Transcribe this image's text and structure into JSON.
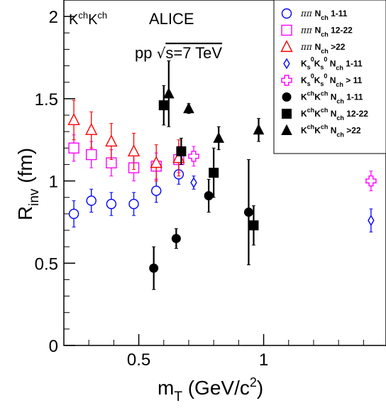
{
  "chart_data": {
    "type": "scatter",
    "title": "ALICE",
    "subtitle": "pp √s=7 TeV",
    "panel_label": "KchKch",
    "xlabel": "mT (GeV/c2)",
    "ylabel": "Rinv (fm)",
    "xlim": [
      0.2,
      1.49
    ],
    "ylim": [
      0,
      2.1
    ],
    "xticks": [
      0.5,
      1
    ],
    "xtick_labels": [
      "0.5",
      "1"
    ],
    "yticks": [
      0,
      0.5,
      1,
      1.5,
      2
    ],
    "ytick_labels": [
      "0",
      "0.5",
      "1",
      "1.5",
      "2"
    ],
    "grid": false,
    "legend_placement": "top-right",
    "series": [
      {
        "name": "ππ Nch 1-11",
        "marker": "circle-open",
        "color": "#0000ff",
        "points": [
          {
            "x": 0.24,
            "y": 0.8,
            "err": 0.08
          },
          {
            "x": 0.31,
            "y": 0.88,
            "err": 0.07
          },
          {
            "x": 0.39,
            "y": 0.86,
            "err": 0.07
          },
          {
            "x": 0.48,
            "y": 0.86,
            "err": 0.07
          },
          {
            "x": 0.57,
            "y": 0.94,
            "err": 0.07
          },
          {
            "x": 0.66,
            "y": 1.04,
            "err": 0.06
          }
        ]
      },
      {
        "name": "ππ Nch 12-22",
        "marker": "square-open",
        "color": "#ff00ff",
        "points": [
          {
            "x": 0.24,
            "y": 1.2,
            "err": 0.08
          },
          {
            "x": 0.31,
            "y": 1.16,
            "err": 0.08
          },
          {
            "x": 0.39,
            "y": 1.11,
            "err": 0.08
          },
          {
            "x": 0.48,
            "y": 1.08,
            "err": 0.08
          },
          {
            "x": 0.57,
            "y": 1.09,
            "err": 0.08
          },
          {
            "x": 0.66,
            "y": 1.13,
            "err": 0.08
          }
        ]
      },
      {
        "name": "ππ Nch >22",
        "marker": "triangle-open",
        "color": "#ff0000",
        "points": [
          {
            "x": 0.24,
            "y": 1.37,
            "err": 0.12
          },
          {
            "x": 0.31,
            "y": 1.31,
            "err": 0.11
          },
          {
            "x": 0.39,
            "y": 1.24,
            "err": 0.11
          },
          {
            "x": 0.48,
            "y": 1.18,
            "err": 0.11
          },
          {
            "x": 0.57,
            "y": 1.11,
            "err": 0.11
          },
          {
            "x": 0.66,
            "y": 1.14,
            "err": 0.11
          }
        ]
      },
      {
        "name": "KsKs Nch 1-11",
        "marker": "diamond-open",
        "color": "#0000ff",
        "points": [
          {
            "x": 0.72,
            "y": 0.99,
            "err": 0.04
          },
          {
            "x": 1.43,
            "y": 0.76,
            "err": 0.07
          }
        ]
      },
      {
        "name": "KsKs Nch > 11",
        "marker": "cross-open",
        "color": "#ff00ff",
        "points": [
          {
            "x": 0.72,
            "y": 1.15,
            "err": 0.06
          },
          {
            "x": 1.43,
            "y": 1.0,
            "err": 0.06
          }
        ]
      },
      {
        "name": "KchKch Nch 1-11",
        "marker": "circle-filled",
        "color": "#000000",
        "points": [
          {
            "x": 0.56,
            "y": 0.47,
            "err": 0.13
          },
          {
            "x": 0.65,
            "y": 0.65,
            "err": 0.06
          },
          {
            "x": 0.78,
            "y": 0.91,
            "err": 0.1
          },
          {
            "x": 0.94,
            "y": 0.81,
            "err": 0.32
          }
        ]
      },
      {
        "name": "KchKch Nch 12-22",
        "marker": "square-filled",
        "color": "#000000",
        "points": [
          {
            "x": 0.6,
            "y": 1.46,
            "err": 0.12
          },
          {
            "x": 0.67,
            "y": 1.18,
            "err": 0.08
          },
          {
            "x": 0.8,
            "y": 1.05,
            "err": 0.15
          },
          {
            "x": 0.96,
            "y": 0.73,
            "err": 0.12
          }
        ]
      },
      {
        "name": "KchKch Nch >22",
        "marker": "triangle-filled",
        "color": "#000000",
        "points": [
          {
            "x": 0.62,
            "y": 1.53,
            "err": 0.2
          },
          {
            "x": 0.7,
            "y": 1.44,
            "err": 0.03
          },
          {
            "x": 0.82,
            "y": 1.26,
            "err": 0.07
          },
          {
            "x": 0.98,
            "y": 1.31,
            "err": 0.07
          }
        ]
      }
    ]
  }
}
